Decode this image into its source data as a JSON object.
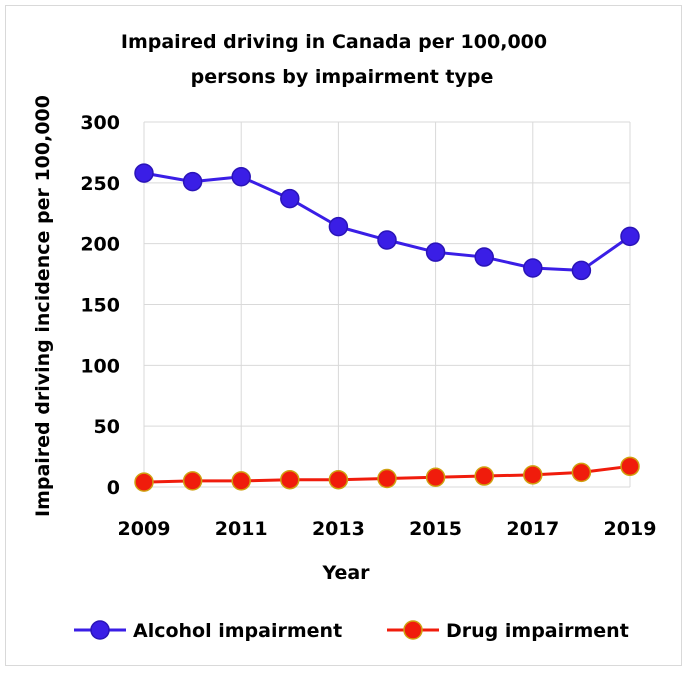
{
  "chart_data": {
    "type": "line",
    "title": [
      "Impaired driving in Canada per 100,000",
      "persons by impairment type"
    ],
    "xlabel": "Year",
    "ylabel": "Impaired driving incidence per 100,000",
    "x": [
      2009,
      2010,
      2011,
      2012,
      2013,
      2014,
      2015,
      2016,
      2017,
      2018,
      2019
    ],
    "x_tick_labels": [
      "2009",
      "2011",
      "2013",
      "2015",
      "2017",
      "2019"
    ],
    "y_tick_labels": [
      "0",
      "50",
      "100",
      "150",
      "200",
      "250",
      "300"
    ],
    "xlim": [
      2009,
      2019
    ],
    "ylim": [
      0,
      300
    ],
    "grid": true,
    "legend_position": "bottom",
    "series": [
      {
        "name": "Alcohol impairment",
        "color": "#3a1ee6",
        "values": [
          258,
          251,
          255,
          237,
          214,
          203,
          193,
          189,
          180,
          178,
          206
        ]
      },
      {
        "name": "Drug impairment",
        "color": "#f01c0c",
        "values": [
          4,
          5,
          5,
          6,
          6,
          7,
          8,
          9,
          10,
          12,
          17
        ]
      }
    ]
  }
}
